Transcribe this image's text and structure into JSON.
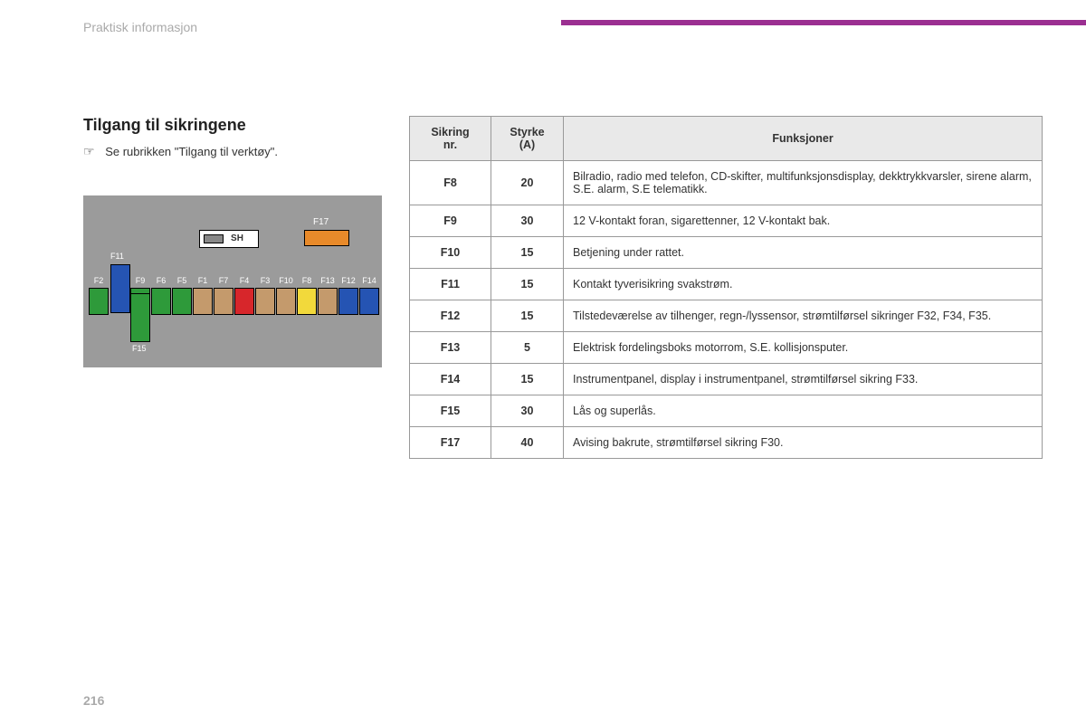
{
  "header": "Praktisk informasjon",
  "accent_color": "#9b2f91",
  "page_number": "216",
  "title": "Tilgang til sikringene",
  "subtitle": "Se rubrikken \"Tilgang til verktøy\".",
  "pointer_glyph": "☞",
  "diagram": {
    "bg": "#9b9b9b",
    "sh_label": "SH",
    "f17": {
      "label": "F17",
      "color": "#e88a2a"
    },
    "f11_color": "#2554b3",
    "f15_color": "#2e9a3a",
    "row": [
      {
        "label": "F2",
        "color": "#2e9a3a"
      },
      {
        "label": "",
        "color": "transparent"
      },
      {
        "label": "F9",
        "color": "#2e9a3a"
      },
      {
        "label": "F6",
        "color": "#2e9a3a"
      },
      {
        "label": "F5",
        "color": "#2e9a3a"
      },
      {
        "label": "F1",
        "color": "#c49a6c"
      },
      {
        "label": "F7",
        "color": "#c49a6c"
      },
      {
        "label": "F4",
        "color": "#d7262b"
      },
      {
        "label": "F3",
        "color": "#c49a6c"
      },
      {
        "label": "F10",
        "color": "#c49a6c"
      },
      {
        "label": "F8",
        "color": "#f2d93b"
      },
      {
        "label": "F13",
        "color": "#c49a6c"
      },
      {
        "label": "F12",
        "color": "#2554b3"
      },
      {
        "label": "F14",
        "color": "#2554b3"
      }
    ]
  },
  "table": {
    "columns": [
      "Sikring\nnr.",
      "Styrke\n(A)",
      "Funksjoner"
    ],
    "col_widths": [
      "90px",
      "80px",
      "auto"
    ],
    "header_bg": "#e9e9e9",
    "border_color": "#999999",
    "rows": [
      [
        "F8",
        "20",
        "Bilradio, radio med telefon, CD-skifter, multifunksjonsdisplay, dekktrykkvarsler, sirene alarm, S.E. alarm, S.E telematikk."
      ],
      [
        "F9",
        "30",
        "12 V-kontakt foran, sigarettenner, 12 V-kontakt bak."
      ],
      [
        "F10",
        "15",
        "Betjening under rattet."
      ],
      [
        "F11",
        "15",
        "Kontakt tyverisikring svakstrøm."
      ],
      [
        "F12",
        "15",
        "Tilstedeværelse av tilhenger, regn-/lyssensor, strømtilførsel sikringer F32, F34, F35."
      ],
      [
        "F13",
        "5",
        "Elektrisk fordelingsboks motorrom, S.E. kollisjonsputer."
      ],
      [
        "F14",
        "15",
        "Instrumentpanel, display i instrumentpanel, strømtilførsel sikring F33."
      ],
      [
        "F15",
        "30",
        "Lås og superlås."
      ],
      [
        "F17",
        "40",
        "Avising bakrute, strømtilførsel sikring F30."
      ]
    ]
  }
}
